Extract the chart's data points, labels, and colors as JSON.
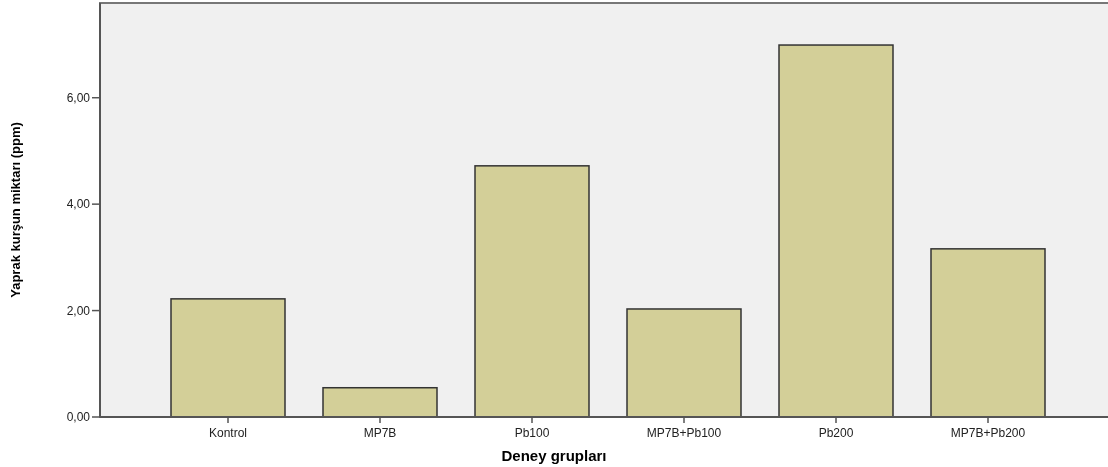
{
  "chart_data": {
    "type": "bar",
    "xlabel": "Deney grupları",
    "ylabel": "Yaprak kurşun miktarı (ppm)",
    "categories": [
      "Kontrol",
      "MP7B",
      "Pb100",
      "MP7B+Pb100",
      "Pb200",
      "MP7B+Pb200"
    ],
    "values": [
      2.22,
      0.55,
      4.72,
      2.03,
      6.99,
      3.16
    ],
    "color": "#d3cf98",
    "ylim": [
      0,
      7.78
    ],
    "yticks": [
      {
        "value": 0,
        "label": "0,00"
      },
      {
        "value": 2,
        "label": "2,00"
      },
      {
        "value": 4,
        "label": "4,00"
      },
      {
        "value": 6,
        "label": "6,00"
      }
    ],
    "grid": false
  }
}
